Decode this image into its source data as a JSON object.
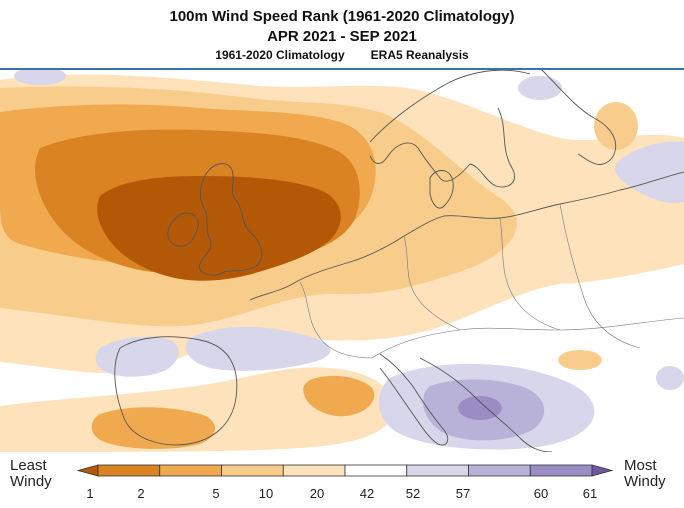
{
  "header": {
    "title": "100m Wind Speed Rank (1961-2020 Climatology)",
    "period": "APR 2021 - SEP 2021",
    "climatology": "1961-2020 Climatology",
    "source": "ERA5 Reanalysis"
  },
  "legend": {
    "left_label_1": "Least",
    "left_label_2": "Windy",
    "right_label_1": "Most",
    "right_label_2": "Windy",
    "ticks": [
      "1",
      "2",
      "5",
      "10",
      "20",
      "42",
      "52",
      "57",
      "60",
      "61"
    ],
    "colors": [
      "#b35806",
      "#d98322",
      "#f0a94e",
      "#f8cd8c",
      "#fde2bb",
      "#ffffff",
      "#d8d6ea",
      "#b9b2d8",
      "#9b8cc4",
      "#6e56a2"
    ]
  },
  "map": {
    "region": "Europe",
    "colors": {
      "ocean_background": "#ffffff",
      "rank_1_2": "#b35806",
      "rank_2_5": "#d98322",
      "rank_5_10": "#f0a94e",
      "rank_10_20": "#f8cd8c",
      "rank_20_42_light": "#fde2bb",
      "rank_42_52": "#ffffff",
      "rank_52_57": "#d8d6ea",
      "rank_57_60": "#b9b2d8",
      "rank_60_61": "#9b8cc4",
      "coastline": "#555555",
      "frame": "#3b6fb0"
    }
  }
}
